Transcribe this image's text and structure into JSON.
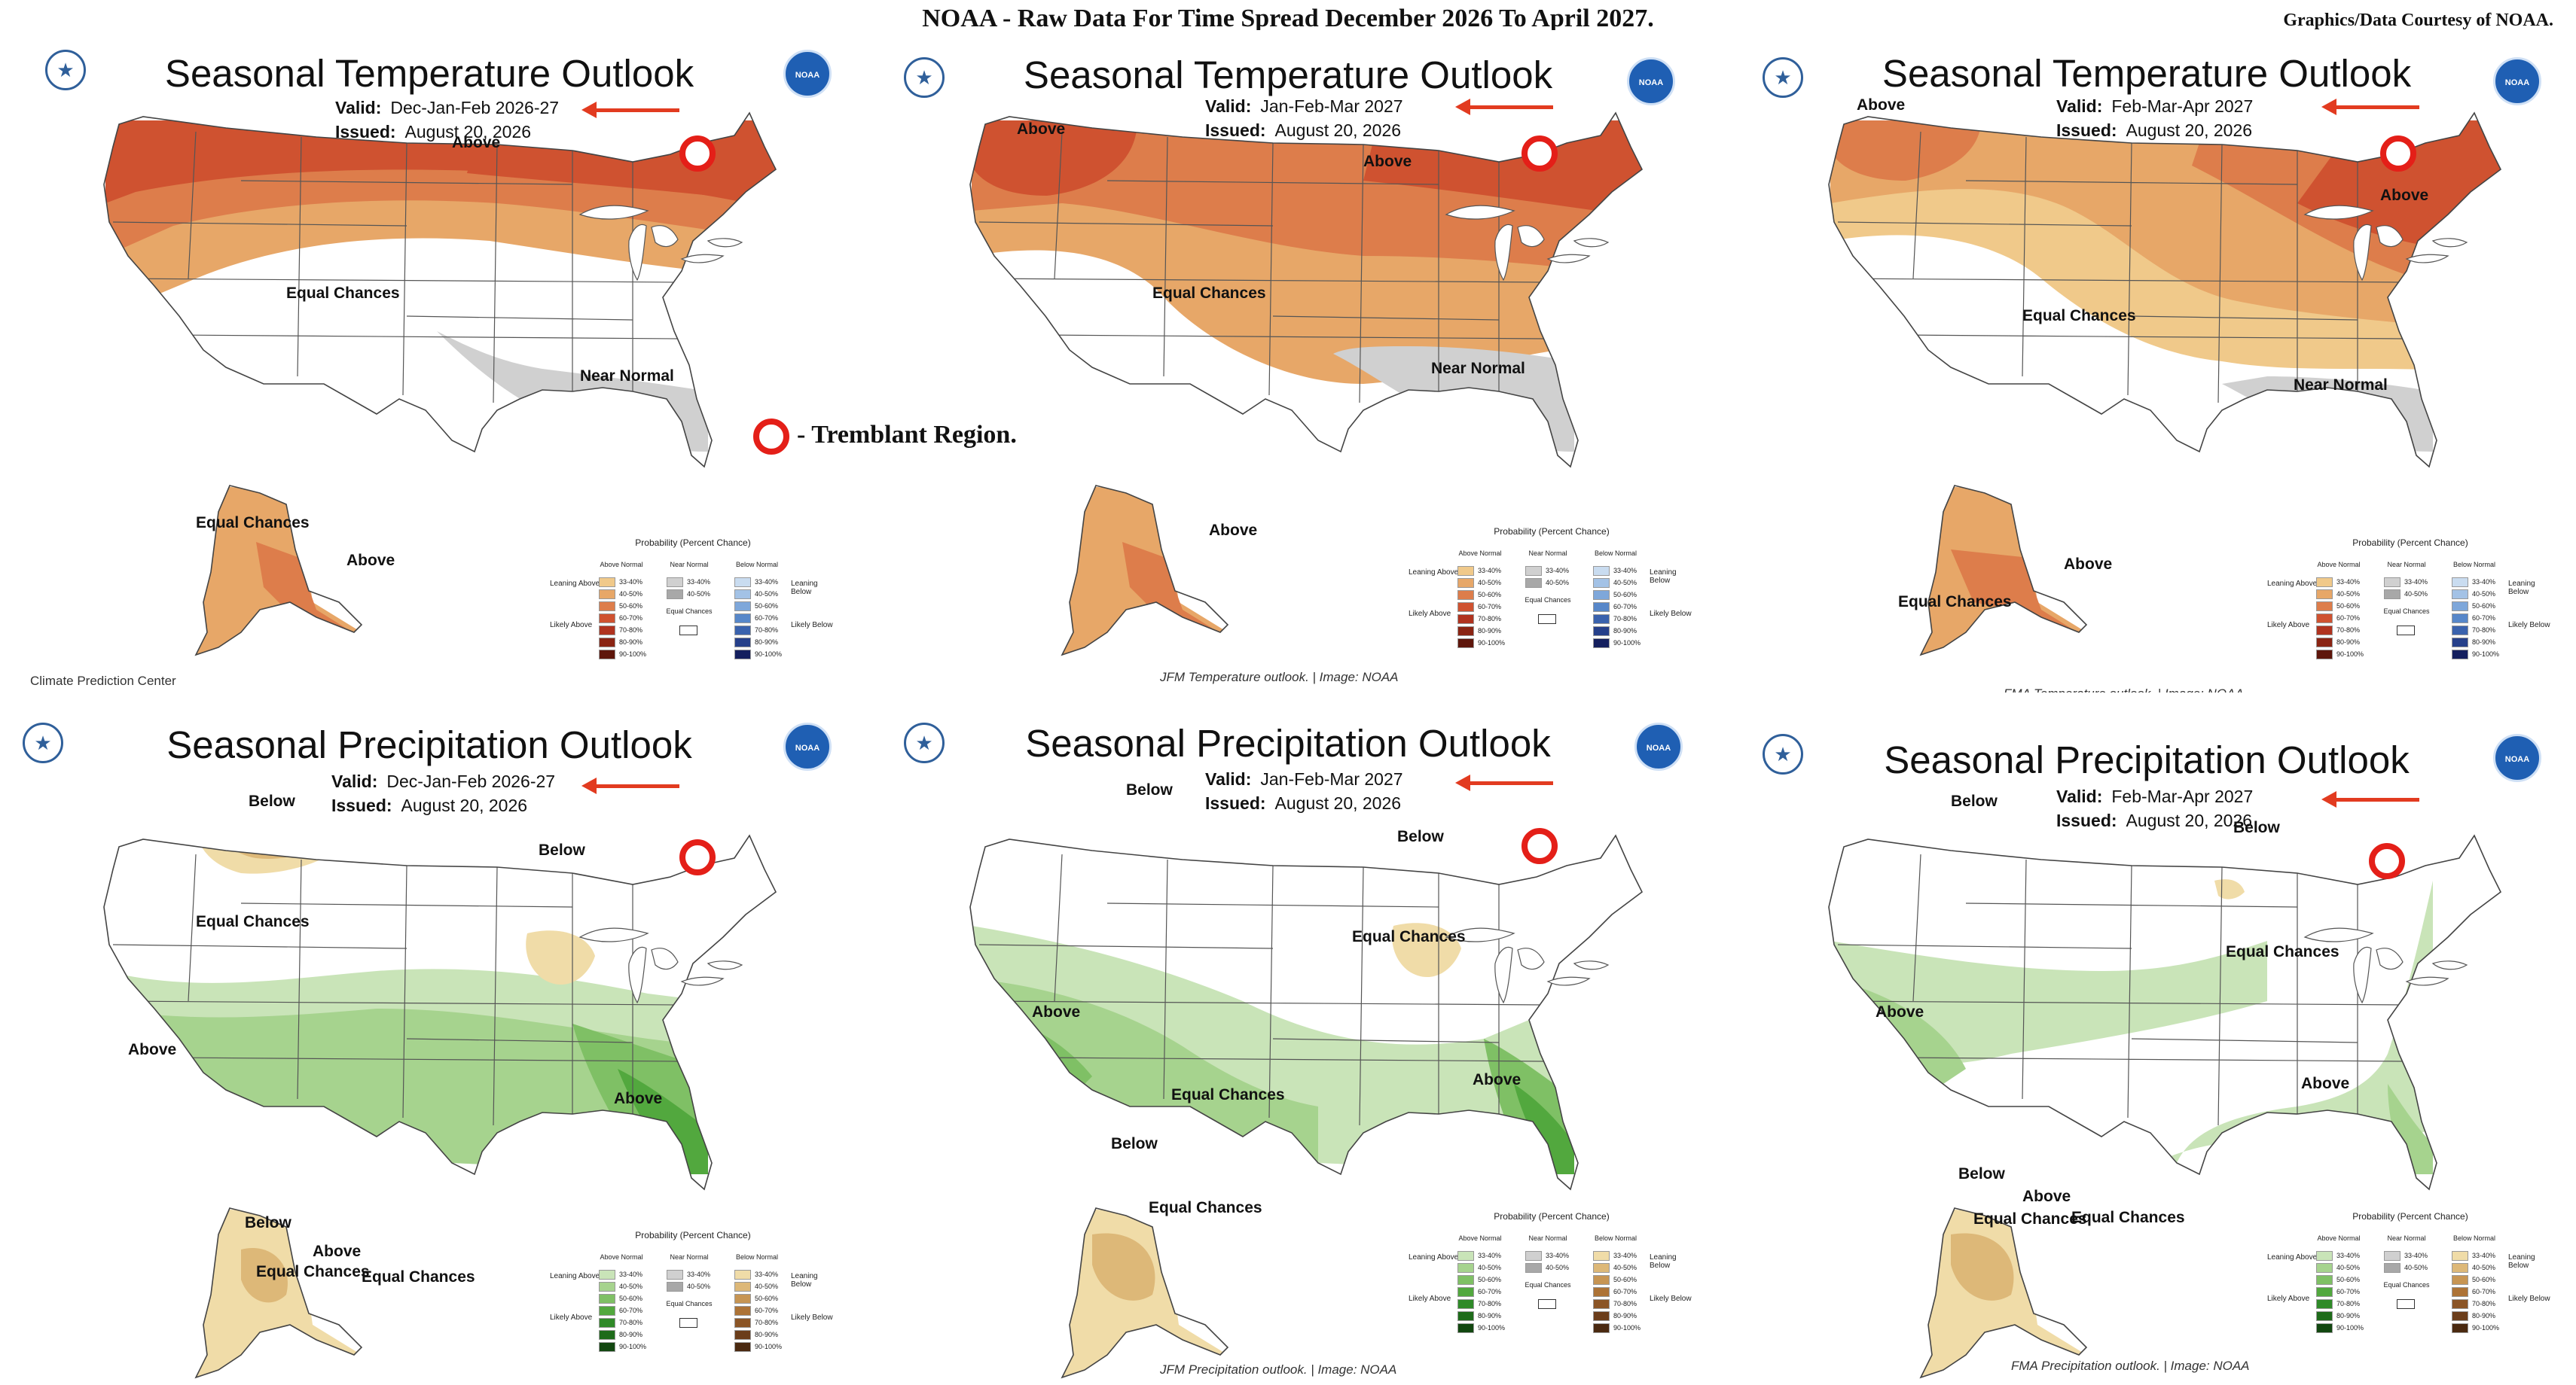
{
  "header": {
    "main_title": "NOAA - Raw Data For Time Spread December 2026 To April 2027.",
    "credit": "Graphics/Data Courtesy of NOAA."
  },
  "tremblant_note": "- Tremblant Region.",
  "legend": {
    "title": "Probability (Percent Chance)",
    "above_head": "Above Normal",
    "near_head": "Near Normal",
    "below_head": "Below Normal",
    "equal_chances": "Equal Chances",
    "leaning_above": "Leaning Above",
    "likely_above": "Likely Above",
    "leaning_below": "Leaning Below",
    "likely_below": "Likely Below",
    "ranges": [
      "33-40%",
      "40-50%",
      "50-60%",
      "60-70%",
      "70-80%",
      "80-90%",
      "90-100%"
    ],
    "near_ranges": [
      "33-40%",
      "40-50%"
    ]
  },
  "colors": {
    "temp_above": [
      "#f0c98a",
      "#e7a768",
      "#dd7d4b",
      "#cf5230",
      "#b0331f",
      "#8a2413",
      "#5e160b"
    ],
    "precip_above": [
      "#c9e4b8",
      "#a6d38e",
      "#7fc065",
      "#52a83e",
      "#2f8a28",
      "#1e6b1a",
      "#124710"
    ],
    "precip_below": [
      "#f0dca8",
      "#ddb878",
      "#c79553",
      "#ad7336",
      "#8b5526",
      "#6b3d1a",
      "#4a2910"
    ],
    "temp_below": [
      "#c9dcf0",
      "#a3c2e6",
      "#7ea7da",
      "#5787c9",
      "#3a62ad",
      "#26408a",
      "#141f5e"
    ],
    "near": [
      "#d0d0d0",
      "#a8a8a8"
    ],
    "tremblant_marker": "#e41f18"
  },
  "panels": [
    {
      "id": "temp-djf",
      "title": "Seasonal Temperature Outlook",
      "valid_key": "Valid:",
      "valid_value": "Dec-Jan-Feb 2026-27",
      "issued_key": "Issued:",
      "issued_value": "August 20, 2026",
      "caption": "Climate Prediction Center",
      "labels": [
        "Above",
        "Equal Chances",
        "Near Normal",
        "Equal Chances",
        "Above"
      ]
    },
    {
      "id": "temp-jfm",
      "title": "Seasonal Temperature Outlook",
      "valid_key": "Valid:",
      "valid_value": "Jan-Feb-Mar 2027",
      "issued_key": "Issued:",
      "issued_value": "August 20, 2026",
      "caption": "JFM Temperature outlook. | Image: NOAA",
      "labels": [
        "Above",
        "Above",
        "Equal Chances",
        "Near Normal",
        "Above"
      ]
    },
    {
      "id": "temp-fma",
      "title": "Seasonal Temperature Outlook",
      "valid_key": "Valid:",
      "valid_value": "Feb-Mar-Apr 2027",
      "issued_key": "Issued:",
      "issued_value": "August 20, 2026",
      "caption": "FMA Temperature outlook. | Image: NOAA",
      "labels": [
        "Above",
        "Above",
        "Equal Chances",
        "Near Normal",
        "Above",
        "Equal Chances"
      ]
    },
    {
      "id": "precip-djf",
      "title": "Seasonal Precipitation Outlook",
      "valid_key": "Valid:",
      "valid_value": "Dec-Jan-Feb 2026-27",
      "issued_key": "Issued:",
      "issued_value": "August 20, 2026",
      "caption": "",
      "labels": [
        "Below",
        "Below",
        "Equal Chances",
        "Above",
        "Above",
        "Below",
        "Equal Chances",
        "Above",
        "Equal Chances"
      ]
    },
    {
      "id": "precip-jfm",
      "title": "Seasonal Precipitation Outlook",
      "valid_key": "Valid:",
      "valid_value": "Jan-Feb-Mar 2027",
      "issued_key": "Issued:",
      "issued_value": "August 20, 2026",
      "caption": "JFM Precipitation outlook. | Image: NOAA",
      "labels": [
        "Below",
        "Below",
        "Equal Chances",
        "Above",
        "Equal Chances",
        "Above",
        "Below",
        "Equal Chances"
      ]
    },
    {
      "id": "precip-fma",
      "title": "Seasonal Precipitation Outlook",
      "valid_key": "Valid:",
      "valid_value": "Feb-Mar-Apr 2027",
      "issued_key": "Issued:",
      "issued_value": "August 20, 2026",
      "caption": "FMA Precipitation outlook. | Image: NOAA",
      "labels": [
        "Below",
        "Below",
        "Above",
        "Equal Chances",
        "Above",
        "Below",
        "Equal Chances",
        "Above",
        "Equal Chances"
      ]
    }
  ]
}
